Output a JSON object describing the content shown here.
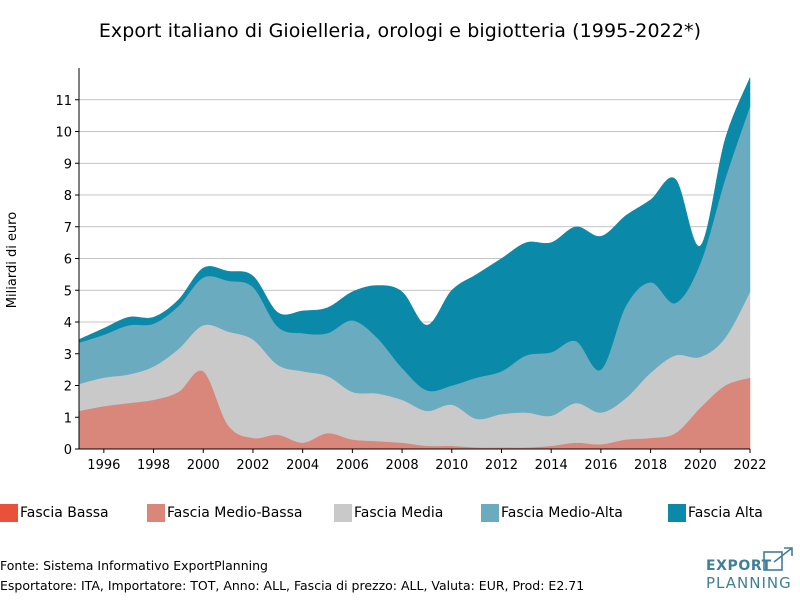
{
  "chart_data": {
    "type": "area",
    "stacked": true,
    "title": "Export italiano di Gioielleria, orologi e bigiotteria (1995-2022*)",
    "xlabel": "",
    "ylabel": "Miliardi di euro",
    "xlim": [
      1995,
      2022
    ],
    "ylim": [
      0,
      12
    ],
    "x": [
      1995,
      1996,
      1997,
      1998,
      1999,
      2000,
      2001,
      2002,
      2003,
      2004,
      2005,
      2006,
      2007,
      2008,
      2009,
      2010,
      2011,
      2012,
      2013,
      2014,
      2015,
      2016,
      2017,
      2018,
      2019,
      2020,
      2021,
      2022
    ],
    "x_ticks": [
      1996,
      1998,
      2000,
      2002,
      2004,
      2006,
      2008,
      2010,
      2012,
      2014,
      2016,
      2018,
      2020,
      2022
    ],
    "y_ticks": [
      0,
      1,
      2,
      3,
      4,
      5,
      6,
      7,
      8,
      9,
      10,
      11
    ],
    "series": [
      {
        "name": "Fascia Bassa",
        "color": "#e8523a",
        "values": [
          0,
          0,
          0,
          0,
          0,
          0,
          0,
          0,
          0,
          0,
          0,
          0,
          0,
          0,
          0,
          0,
          0,
          0,
          0,
          0,
          0,
          0,
          0,
          0,
          0,
          0,
          0,
          0
        ]
      },
      {
        "name": "Fascia Medio-Bassa",
        "color": "#d9867b",
        "values": [
          1.2,
          1.35,
          1.45,
          1.55,
          1.8,
          2.45,
          0.75,
          0.35,
          0.45,
          0.2,
          0.5,
          0.3,
          0.25,
          0.2,
          0.1,
          0.1,
          0.05,
          0.05,
          0.05,
          0.1,
          0.2,
          0.15,
          0.3,
          0.35,
          0.5,
          1.3,
          2.0,
          2.25
        ]
      },
      {
        "name": "Fascia Media",
        "color": "#c9c9c9",
        "values": [
          0.85,
          0.9,
          0.9,
          1.05,
          1.35,
          1.45,
          2.95,
          3.1,
          2.2,
          2.25,
          1.8,
          1.5,
          1.5,
          1.35,
          1.1,
          1.3,
          0.9,
          1.05,
          1.1,
          0.95,
          1.25,
          1.0,
          1.3,
          2.05,
          2.45,
          1.6,
          1.5,
          2.7
        ]
      },
      {
        "name": "Fascia Medio-Alta",
        "color": "#6aabbf",
        "values": [
          1.3,
          1.35,
          1.55,
          1.35,
          1.35,
          1.5,
          1.6,
          1.65,
          1.2,
          1.2,
          1.35,
          2.25,
          1.75,
          1.0,
          0.65,
          0.6,
          1.3,
          1.35,
          1.8,
          2.0,
          1.95,
          1.35,
          2.9,
          2.85,
          1.65,
          2.95,
          5.0,
          5.85
        ]
      },
      {
        "name": "Fascia Alta",
        "color": "#0a8aa8",
        "values": [
          0.1,
          0.2,
          0.25,
          0.2,
          0.2,
          0.3,
          0.3,
          0.35,
          0.45,
          0.7,
          0.8,
          0.9,
          1.65,
          2.4,
          2.05,
          3.0,
          3.25,
          3.55,
          3.55,
          3.45,
          3.6,
          4.2,
          2.85,
          2.6,
          3.9,
          0.55,
          1.25,
          0.9
        ]
      }
    ]
  },
  "footer": {
    "source": "Fonte: Sistema Informativo ExportPlanning",
    "filters": "Esportatore: ITA, Importatore: TOT, Anno: ALL, Fascia di prezzo: ALL, Valuta: EUR, Prod: E2.71"
  },
  "brand": {
    "line1": "EXPORT",
    "line2": "PLANNING"
  }
}
